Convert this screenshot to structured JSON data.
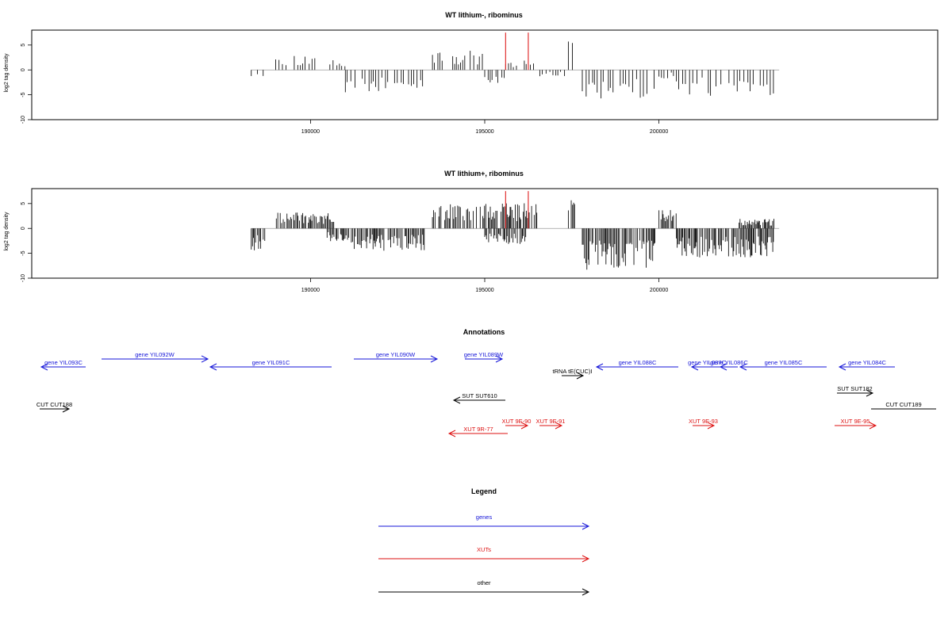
{
  "chart_data": [
    {
      "type": "bar",
      "title": "WT lithium-, ribominus",
      "ylabel": "log2 tag density",
      "xlim": [
        182000,
        208000
      ],
      "ylim": [
        -10,
        8
      ],
      "x_ticks": [
        190000,
        195000,
        200000
      ],
      "y_ticks": [
        -10,
        -5,
        0,
        5
      ],
      "x_tick_labels": [
        "190000",
        "195000",
        "200000"
      ],
      "y_tick_labels": [
        "-10",
        "-5",
        "0",
        "5"
      ],
      "highlight_positions": [
        195600,
        196250
      ],
      "highlight_color": "#e03030",
      "density_profile": [
        {
          "start": 188300,
          "end": 188700,
          "value": -2.0
        },
        {
          "start": 189000,
          "end": 190200,
          "value": 2.5
        },
        {
          "start": 190400,
          "end": 191000,
          "value": 1.5
        },
        {
          "start": 191000,
          "end": 193300,
          "value": -3.5
        },
        {
          "start": 193500,
          "end": 195000,
          "value": 3.0
        },
        {
          "start": 195000,
          "end": 195600,
          "value": -2.0
        },
        {
          "start": 195600,
          "end": 196500,
          "value": 1.5
        },
        {
          "start": 196500,
          "end": 197300,
          "value": -1.0
        },
        {
          "start": 197400,
          "end": 197600,
          "value": 6.0
        },
        {
          "start": 197800,
          "end": 199900,
          "value": -4.5
        },
        {
          "start": 200000,
          "end": 200500,
          "value": -1.5
        },
        {
          "start": 200500,
          "end": 203300,
          "value": -4.0
        }
      ]
    },
    {
      "type": "bar",
      "title": "WT lithium+, ribominus",
      "ylabel": "log2 tag density",
      "xlim": [
        182000,
        208000
      ],
      "ylim": [
        -10,
        8
      ],
      "x_ticks": [
        190000,
        195000,
        200000
      ],
      "y_ticks": [
        -10,
        -5,
        0,
        5
      ],
      "x_tick_labels": [
        "190000",
        "195000",
        "200000"
      ],
      "y_tick_labels": [
        "-10",
        "-5",
        "0",
        "5"
      ],
      "highlight_positions": [
        195600,
        196250
      ],
      "highlight_color": "#e03030",
      "density_profile": [
        {
          "start": 188300,
          "end": 188700,
          "value": -3.5
        },
        {
          "start": 189000,
          "end": 190700,
          "value": 2.5
        },
        {
          "start": 190400,
          "end": 191000,
          "value": -2.0
        },
        {
          "start": 191000,
          "end": 193300,
          "value": -3.5
        },
        {
          "start": 193500,
          "end": 196500,
          "value": 4.0
        },
        {
          "start": 195000,
          "end": 196200,
          "value": -2.5
        },
        {
          "start": 197400,
          "end": 197600,
          "value": 7.0
        },
        {
          "start": 197800,
          "end": 199900,
          "value": -6.5
        },
        {
          "start": 200000,
          "end": 200500,
          "value": 3.0
        },
        {
          "start": 200500,
          "end": 203300,
          "value": -4.5
        },
        {
          "start": 202300,
          "end": 203300,
          "value": 1.5
        }
      ]
    }
  ],
  "annotations": {
    "title": "Annotations",
    "features": [
      {
        "label": "gene YIL093C",
        "x1": 108,
        "x2": 52,
        "row": 1,
        "color": "#1515d8"
      },
      {
        "label": "gene YIL092W",
        "x1": 128,
        "x2": 262,
        "row": 0,
        "color": "#1515d8"
      },
      {
        "label": "gene YIL091C",
        "x1": 418,
        "x2": 265,
        "row": 1,
        "color": "#1515d8"
      },
      {
        "label": "gene YIL090W",
        "x1": 446,
        "x2": 551,
        "row": 0,
        "color": "#1515d8"
      },
      {
        "label": "gene YIL089W",
        "x1": 586,
        "x2": 633,
        "row": 0,
        "color": "#1515d8"
      },
      {
        "label": "tRNA tE(CUC)I",
        "x1": 708,
        "x2": 735,
        "row": 2,
        "color": "#000000"
      },
      {
        "label": "gene YIL088C",
        "x1": 855,
        "x2": 752,
        "row": 1,
        "color": "#1515d8"
      },
      {
        "label": "gene YIL087C",
        "x1": 910,
        "x2": 872,
        "row": 1,
        "color": "#1515d8"
      },
      {
        "label": "gene YIL086C",
        "x1": 930,
        "x2": 908,
        "row": 1,
        "color": "#1515d8"
      },
      {
        "label": "gene YIL085C",
        "x1": 1042,
        "x2": 933,
        "row": 1,
        "color": "#1515d8"
      },
      {
        "label": "gene YIL084C",
        "x1": 1128,
        "x2": 1058,
        "row": 1,
        "color": "#1515d8"
      },
      {
        "label": "SUT SUT610",
        "x1": 637,
        "x2": 572,
        "row": 3,
        "color": "#000000"
      },
      {
        "label": "SUT SUT182",
        "x1": 1055,
        "x2": 1100,
        "row": 4,
        "color": "#000000"
      },
      {
        "label": "CUT CUT188",
        "x1": 50,
        "x2": 87,
        "row": 5,
        "color": "#000000"
      },
      {
        "label": "CUT CUT189",
        "x1": 1098,
        "x2": 1180,
        "row": 5,
        "color": "#000000",
        "noarrow": true
      },
      {
        "label": "XUT 9E-90",
        "x1": 637,
        "x2": 665,
        "row": 6,
        "color": "#dd1111"
      },
      {
        "label": "XUT 9E-91",
        "x1": 680,
        "x2": 708,
        "row": 6,
        "color": "#dd1111"
      },
      {
        "label": "XUT 9R-77",
        "x1": 640,
        "x2": 566,
        "row": 7,
        "color": "#dd1111"
      },
      {
        "label": "XUT 9E-93",
        "x1": 873,
        "x2": 900,
        "row": 6,
        "color": "#dd1111"
      },
      {
        "label": "XUT 9E-95",
        "x1": 1052,
        "x2": 1104,
        "row": 6,
        "color": "#dd1111"
      }
    ]
  },
  "legend": {
    "title": "Legend",
    "items": [
      {
        "label": "genes",
        "color": "#1515d8"
      },
      {
        "label": "XUTs",
        "color": "#dd1111"
      },
      {
        "label": "other",
        "color": "#000000"
      }
    ]
  }
}
